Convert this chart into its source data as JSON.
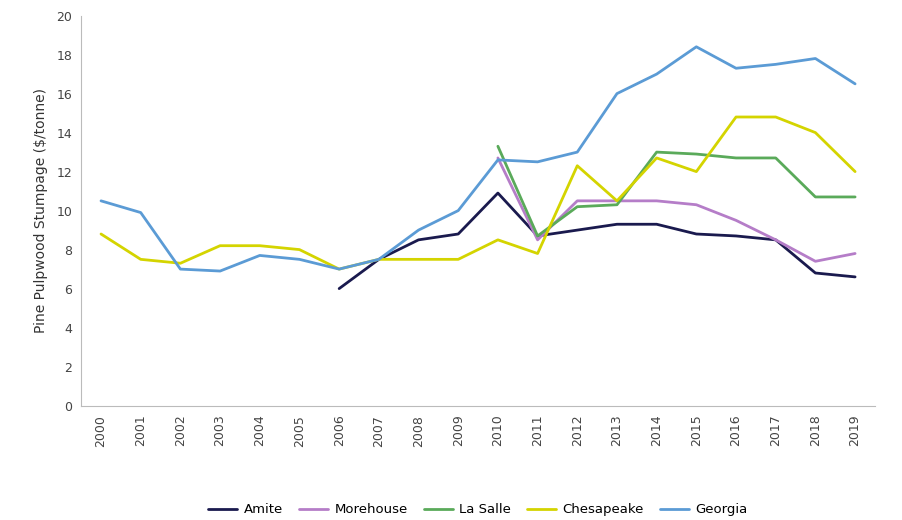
{
  "years": [
    2000,
    2001,
    2002,
    2003,
    2004,
    2005,
    2006,
    2007,
    2008,
    2009,
    2010,
    2011,
    2012,
    2013,
    2014,
    2015,
    2016,
    2017,
    2018,
    2019
  ],
  "series": {
    "Amite": [
      null,
      null,
      null,
      null,
      null,
      null,
      6.0,
      7.5,
      8.5,
      8.8,
      10.9,
      8.7,
      9.0,
      9.3,
      9.3,
      8.8,
      8.7,
      8.5,
      6.8,
      6.6
    ],
    "Morehouse": [
      null,
      null,
      null,
      null,
      null,
      null,
      null,
      null,
      null,
      null,
      12.7,
      8.5,
      10.5,
      10.5,
      10.5,
      10.3,
      9.5,
      8.5,
      7.4,
      7.8
    ],
    "La Salle": [
      null,
      null,
      null,
      null,
      null,
      null,
      null,
      null,
      null,
      null,
      13.3,
      8.7,
      10.2,
      10.3,
      13.0,
      12.9,
      12.7,
      12.7,
      10.7,
      10.7
    ],
    "Chesapeake": [
      8.8,
      7.5,
      7.3,
      8.2,
      8.2,
      8.0,
      7.0,
      7.5,
      7.5,
      7.5,
      8.5,
      7.8,
      12.3,
      10.5,
      12.7,
      12.0,
      14.8,
      14.8,
      14.0,
      12.0
    ],
    "Georgia": [
      10.5,
      9.9,
      7.0,
      6.9,
      7.7,
      7.5,
      7.0,
      7.5,
      9.0,
      10.0,
      12.6,
      12.5,
      13.0,
      16.0,
      17.0,
      18.4,
      17.3,
      17.5,
      17.8,
      16.5
    ]
  },
  "colors": {
    "Amite": "#1a1a4e",
    "Morehouse": "#b57dc8",
    "La Salle": "#5aaa5a",
    "Chesapeake": "#d4d400",
    "Georgia": "#5b9bd5"
  },
  "ylabel": "Pine Pulpwood Stumpage ($/tonne)",
  "ylim": [
    0,
    20
  ],
  "yticks": [
    0,
    2,
    4,
    6,
    8,
    10,
    12,
    14,
    16,
    18,
    20
  ],
  "linewidth": 2.0,
  "background_color": "#ffffff",
  "legend_order": [
    "Amite",
    "Morehouse",
    "La Salle",
    "Chesapeake",
    "Georgia"
  ]
}
